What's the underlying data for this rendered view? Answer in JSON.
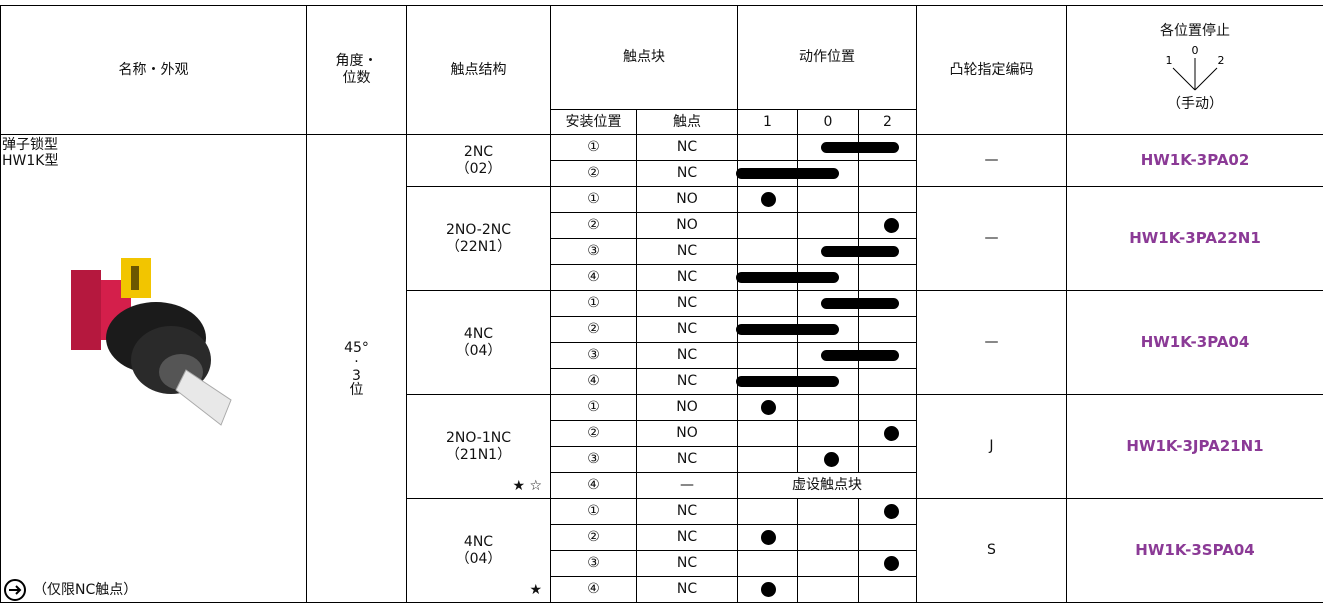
{
  "header": {
    "name": "名称・外观",
    "angle": [
      "角度・",
      "位数"
    ],
    "structure": "触点结构",
    "block": "触点块",
    "action": "动作位置",
    "cam": "凸轮指定编码",
    "stop": "各位置停止",
    "stop_positions": [
      "1",
      "0",
      "2"
    ],
    "manual": "（手动）",
    "mount": "安装位置",
    "contact": "触点",
    "positions": [
      "1",
      "0",
      "2"
    ]
  },
  "name_cell": {
    "type": "弹子锁型",
    "model": "HW1K型",
    "note": "（仅限NC触点）"
  },
  "angle": [
    "45°",
    "·",
    "3",
    "位"
  ],
  "groups": [
    {
      "structure": [
        "2NC",
        "（02）"
      ],
      "cam": "—",
      "part": "HW1K-3PA02",
      "rows": [
        {
          "pos": "①",
          "contact": "NC"
        },
        {
          "pos": "②",
          "contact": "NC"
        }
      ]
    },
    {
      "structure": [
        "2NO-2NC",
        "（22N1）"
      ],
      "cam": "—",
      "part": "HW1K-3PA22N1",
      "rows": [
        {
          "pos": "①",
          "contact": "NO"
        },
        {
          "pos": "②",
          "contact": "NO"
        },
        {
          "pos": "③",
          "contact": "NC"
        },
        {
          "pos": "④",
          "contact": "NC"
        }
      ]
    },
    {
      "structure": [
        "4NC",
        "（04）"
      ],
      "cam": "—",
      "part": "HW1K-3PA04",
      "rows": [
        {
          "pos": "①",
          "contact": "NC"
        },
        {
          "pos": "②",
          "contact": "NC"
        },
        {
          "pos": "③",
          "contact": "NC"
        },
        {
          "pos": "④",
          "contact": "NC"
        }
      ]
    },
    {
      "structure": [
        "2NO-1NC",
        "（21N1）"
      ],
      "marks": "★ ☆",
      "cam": "J",
      "part": "HW1K-3JPA21N1",
      "rows": [
        {
          "pos": "①",
          "contact": "NO"
        },
        {
          "pos": "②",
          "contact": "NO"
        },
        {
          "pos": "③",
          "contact": "NC"
        },
        {
          "pos": "④",
          "contact": "—",
          "action": "虚设触点块"
        }
      ]
    },
    {
      "structure": [
        "4NC",
        "（04）"
      ],
      "marks": "★",
      "cam": "S",
      "part": "HW1K-3SPA04",
      "rows": [
        {
          "pos": "①",
          "contact": "NC"
        },
        {
          "pos": "②",
          "contact": "NC"
        },
        {
          "pos": "③",
          "contact": "NC"
        },
        {
          "pos": "④",
          "contact": "NC"
        }
      ]
    }
  ]
}
